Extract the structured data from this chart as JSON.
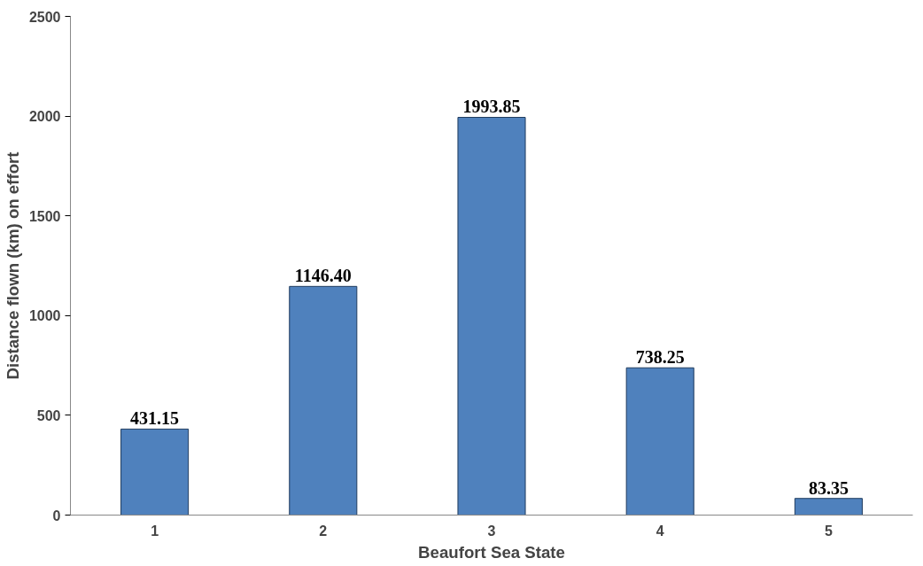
{
  "chart_data": {
    "type": "bar",
    "xlabel": "Beaufort Sea State",
    "ylabel": "Distance flown (km) on effort",
    "categories": [
      "1",
      "2",
      "3",
      "4",
      "5"
    ],
    "values": [
      431.15,
      1146.4,
      1993.85,
      738.25,
      83.35
    ],
    "value_labels": [
      "431.15",
      "1146.40",
      "1993.85",
      "738.25",
      "83.35"
    ],
    "color": "#4f81bd",
    "ylim": [
      0,
      2500
    ],
    "yticks": [
      0,
      500,
      1000,
      1500,
      2000,
      2500
    ],
    "grid": false
  }
}
